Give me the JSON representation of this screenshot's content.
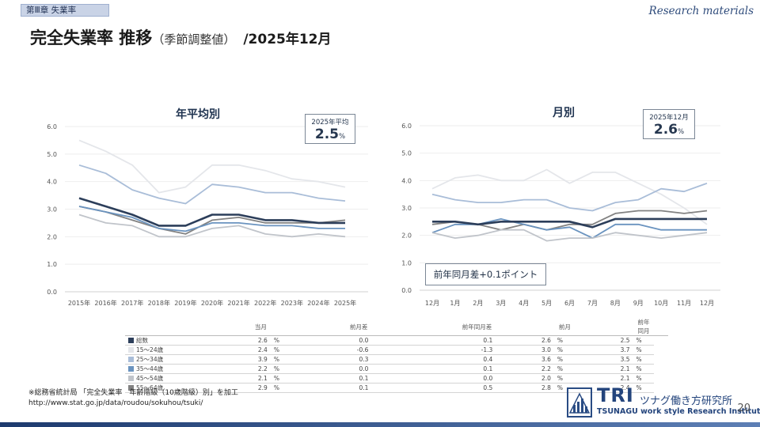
{
  "header": {
    "chapter": "第Ⅲ章 失業率",
    "research": "Research materials",
    "title_main": "完全失業率 推移",
    "title_sub": "（季節調整値）",
    "title_date": "/2025年12月"
  },
  "colors": {
    "総数": "#2c3e5a",
    "15〜24歳": "#e4e6ea",
    "25〜34歳": "#a9bdd8",
    "35〜44歳": "#6a93bf",
    "45〜54歳": "#c0c4ca",
    "55〜64歳": "#828282"
  },
  "chart_data": [
    {
      "type": "line",
      "title": "年平均別",
      "categories": [
        "2015年",
        "2016年",
        "2017年",
        "2018年",
        "2019年",
        "2020年",
        "2021年",
        "2022年",
        "2023年",
        "2024年",
        "2025年"
      ],
      "ylim": [
        0,
        6
      ],
      "yticks": [
        "0.0",
        "1.0",
        "2.0",
        "3.0",
        "4.0",
        "5.0",
        "6.0"
      ],
      "series": [
        {
          "name": "15〜24歳",
          "values": [
            5.5,
            5.1,
            4.6,
            3.6,
            3.8,
            4.6,
            4.6,
            4.4,
            4.1,
            4.0,
            3.8
          ]
        },
        {
          "name": "25〜34歳",
          "values": [
            4.6,
            4.3,
            3.7,
            3.4,
            3.2,
            3.9,
            3.8,
            3.6,
            3.6,
            3.4,
            3.3
          ]
        },
        {
          "name": "55〜64歳",
          "values": [
            3.1,
            2.9,
            2.6,
            2.3,
            2.1,
            2.6,
            2.7,
            2.5,
            2.5,
            2.5,
            2.6
          ]
        },
        {
          "name": "35〜44歳",
          "values": [
            3.1,
            2.9,
            2.7,
            2.3,
            2.2,
            2.5,
            2.5,
            2.4,
            2.4,
            2.3,
            2.3
          ]
        },
        {
          "name": "45〜54歳",
          "values": [
            2.8,
            2.5,
            2.4,
            2.0,
            2.0,
            2.3,
            2.4,
            2.1,
            2.0,
            2.1,
            2.0
          ]
        },
        {
          "name": "総数",
          "values": [
            3.4,
            3.1,
            2.8,
            2.4,
            2.4,
            2.8,
            2.8,
            2.6,
            2.6,
            2.5,
            2.5
          ]
        }
      ],
      "callout": {
        "label": "2025年平均",
        "value": "2.5",
        "unit": "%"
      }
    },
    {
      "type": "line",
      "title": "月別",
      "categories": [
        "12月",
        "1月",
        "2月",
        "3月",
        "4月",
        "5月",
        "6月",
        "7月",
        "8月",
        "9月",
        "10月",
        "11月",
        "12月"
      ],
      "ylim": [
        0,
        6
      ],
      "yticks": [
        "0.0",
        "1.0",
        "2.0",
        "3.0",
        "4.0",
        "5.0",
        "6.0"
      ],
      "series": [
        {
          "name": "15〜24歳",
          "values": [
            3.7,
            4.1,
            4.2,
            4.0,
            4.0,
            4.4,
            3.9,
            4.3,
            4.3,
            3.9,
            3.5,
            3.0,
            2.4
          ]
        },
        {
          "name": "25〜34歳",
          "values": [
            3.5,
            3.3,
            3.2,
            3.2,
            3.3,
            3.3,
            3.0,
            2.9,
            3.2,
            3.3,
            3.7,
            3.6,
            3.9
          ]
        },
        {
          "name": "55〜64歳",
          "values": [
            2.4,
            2.5,
            2.4,
            2.2,
            2.4,
            2.2,
            2.4,
            2.4,
            2.8,
            2.9,
            2.9,
            2.8,
            2.9
          ]
        },
        {
          "name": "35〜44歳",
          "values": [
            2.1,
            2.4,
            2.4,
            2.6,
            2.4,
            2.2,
            2.3,
            1.9,
            2.4,
            2.4,
            2.2,
            2.2,
            2.2
          ]
        },
        {
          "name": "45〜54歳",
          "values": [
            2.1,
            1.9,
            2.0,
            2.2,
            2.2,
            1.8,
            1.9,
            1.9,
            2.1,
            2.0,
            1.9,
            2.0,
            2.1
          ]
        },
        {
          "name": "総数",
          "values": [
            2.5,
            2.5,
            2.4,
            2.5,
            2.5,
            2.5,
            2.5,
            2.3,
            2.6,
            2.6,
            2.6,
            2.6,
            2.6
          ]
        }
      ],
      "callout": {
        "label": "2025年12月",
        "value": "2.6",
        "unit": "%"
      },
      "annotation": "前年同月差+0.1ポイント"
    }
  ],
  "table": {
    "headers": [
      "当月",
      "前月差",
      "前年同月差",
      "前月",
      "前年同月"
    ],
    "rows": [
      {
        "name": "総数",
        "cells": [
          "2.6",
          "0.0",
          "0.1",
          "2.6",
          "2.5"
        ]
      },
      {
        "name": "15〜24歳",
        "cells": [
          "2.4",
          "-0.6",
          "-1.3",
          "3.0",
          "3.7"
        ]
      },
      {
        "name": "25〜34歳",
        "cells": [
          "3.9",
          "0.3",
          "0.4",
          "3.6",
          "3.5"
        ]
      },
      {
        "name": "35〜44歳",
        "cells": [
          "2.2",
          "0.0",
          "0.1",
          "2.2",
          "2.1"
        ]
      },
      {
        "name": "45〜54歳",
        "cells": [
          "2.1",
          "0.1",
          "0.0",
          "2.0",
          "2.1"
        ]
      },
      {
        "name": "55〜64歳",
        "cells": [
          "2.9",
          "0.1",
          "0.5",
          "2.8",
          "2.4"
        ]
      }
    ],
    "pct": "%"
  },
  "footer": {
    "source_line1": "※総務省統計局 「完全失業率　年齢階級（10歳階級）別」を加工",
    "source_line2": "http://www.stat.go.jp/data/roudou/sokuhou/tsuki/",
    "logo_tri": "TRI",
    "logo_name": "ツナグ働き方研究所",
    "logo_en": "TSUNAGU work style Research Institute",
    "page": "20"
  }
}
